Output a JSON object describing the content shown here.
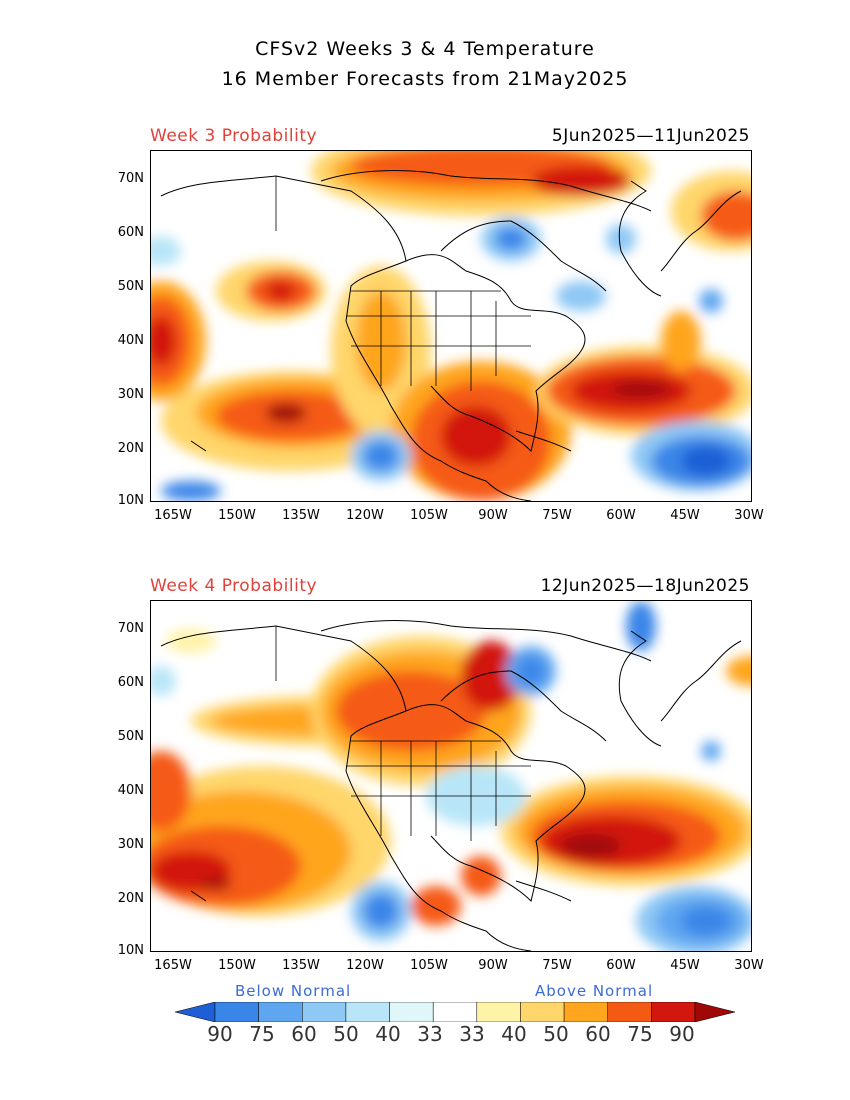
{
  "title": {
    "line1": "CFSv2 Weeks 3 & 4 Temperature",
    "line2": "16 Member Forecasts from 21May2025"
  },
  "panels": [
    {
      "week_label": "Week 3 Probability",
      "date_range": "5Jun2025—11Jun2025"
    },
    {
      "week_label": "Week 4 Probability",
      "date_range": "12Jun2025—18Jun2025"
    }
  ],
  "axes": {
    "lat_labels": [
      "70N",
      "60N",
      "50N",
      "40N",
      "30N",
      "20N",
      "10N"
    ],
    "lon_labels": [
      "165W",
      "150W",
      "135W",
      "120W",
      "105W",
      "90W",
      "75W",
      "60W",
      "45W",
      "30W"
    ]
  },
  "legend": {
    "below_label": "Below Normal",
    "above_label": "Above Normal",
    "values": [
      "90",
      "75",
      "60",
      "50",
      "40",
      "33",
      "33",
      "40",
      "50",
      "60",
      "75",
      "90"
    ],
    "colors": [
      "#1e5fd6",
      "#3a86e8",
      "#5ea6f0",
      "#8ec8f5",
      "#b8e6f8",
      "#e0f7fa",
      "#ffffff",
      "#fff3a8",
      "#ffd66b",
      "#ffa51e",
      "#f55a14",
      "#d2180e",
      "#a00808"
    ]
  }
}
